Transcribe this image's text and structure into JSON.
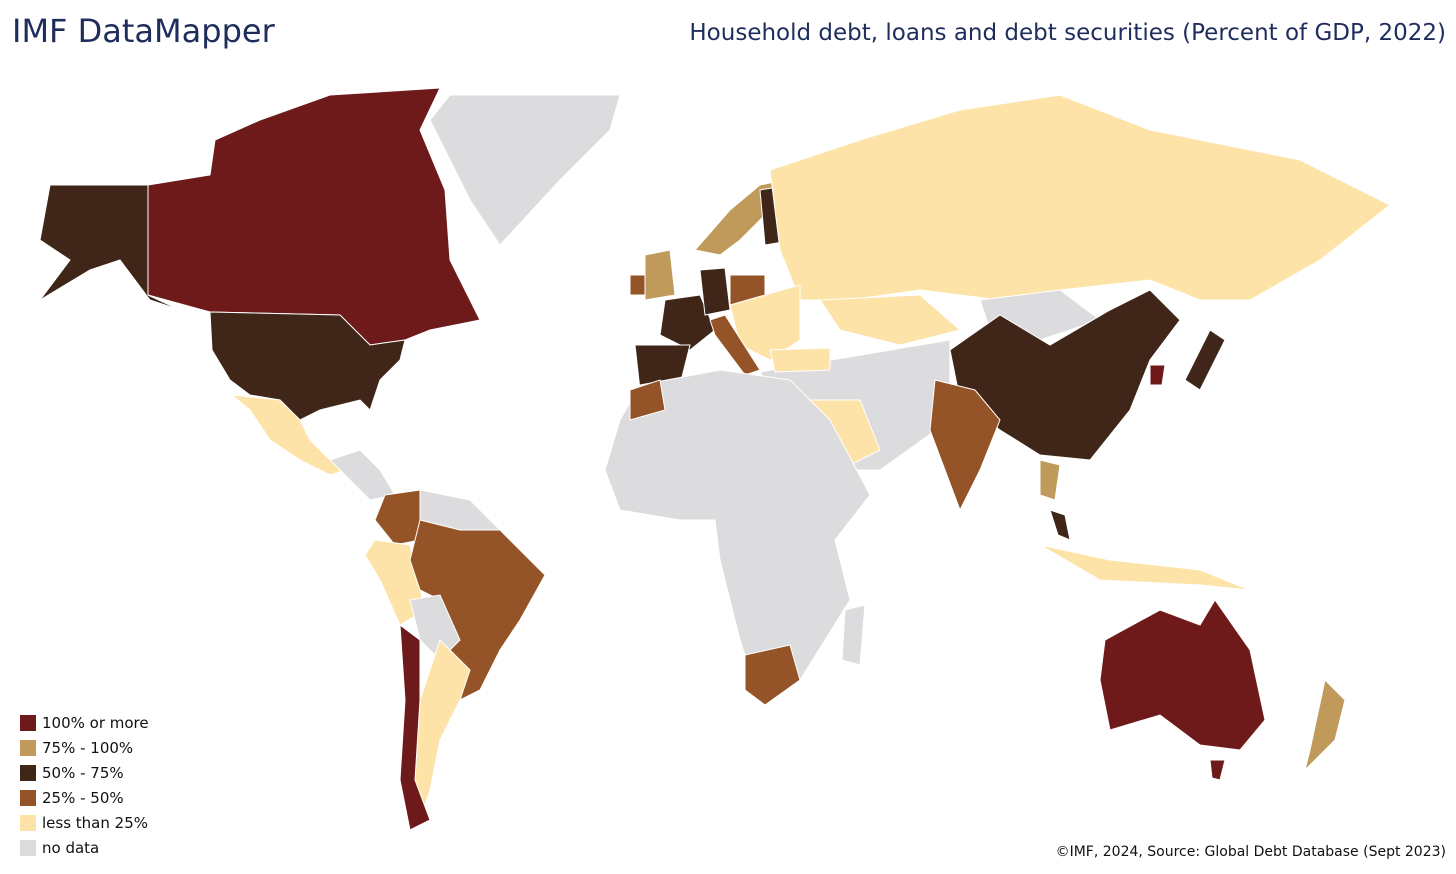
{
  "header": {
    "brand": "IMF DataMapper",
    "title": "Household debt, loans and debt securities (Percent of GDP, 2022)"
  },
  "legend": {
    "items": [
      {
        "label": "100% or more",
        "color": "#6e1a1a"
      },
      {
        "label": "75% - 100%",
        "color": "#c09a5b"
      },
      {
        "label": "50% - 75%",
        "color": "#3f2618"
      },
      {
        "label": "25% - 50%",
        "color": "#955427"
      },
      {
        "label": "less than 25%",
        "color": "#fde3a7"
      },
      {
        "label": "no data",
        "color": "#dcdcdf"
      }
    ]
  },
  "footer": {
    "source": "©IMF, 2024, Source: Global Debt Database (Sept 2023)"
  }
}
